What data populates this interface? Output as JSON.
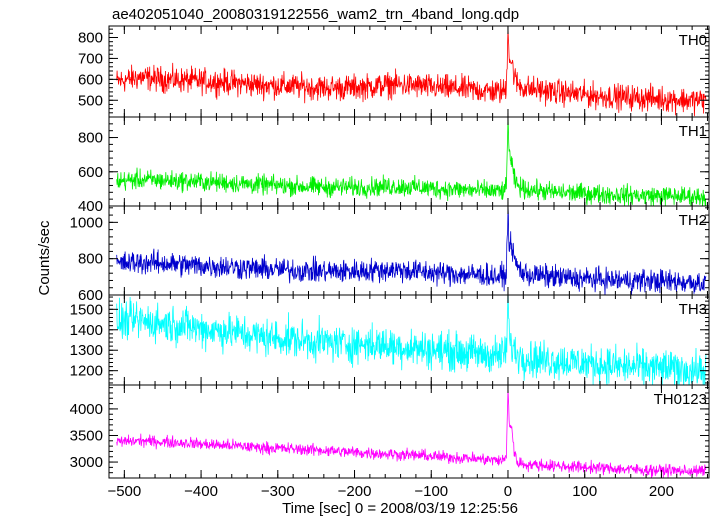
{
  "chart_data": {
    "type": "line",
    "title": "ae402051040_20080319122556_wam2_trn_4band_long.qdp",
    "xlabel": "Time [sec] 0 = 2008/03/19 12:25:56",
    "ylabel": "Counts/sec",
    "xlim": [
      -520,
      262
    ],
    "x_ticks": [
      "−500",
      "−400",
      "−300",
      "−200",
      "−100",
      "0",
      "100",
      "200"
    ],
    "x_tick_values": [
      -500,
      -400,
      -300,
      -200,
      -100,
      0,
      100,
      200
    ],
    "panels": [
      {
        "name": "TH0",
        "color": "#ff0000",
        "ylim": [
          420,
          855
        ],
        "y_ticks": [
          "500",
          "600",
          "700",
          "800"
        ],
        "y_tick_values": [
          500,
          600,
          700,
          800
        ],
        "x": [
          -510,
          -480,
          -450,
          -420,
          -390,
          -360,
          -330,
          -300,
          -270,
          -240,
          -210,
          -180,
          -150,
          -120,
          -90,
          -60,
          -30,
          -10,
          -5,
          -2,
          0,
          2,
          5,
          8,
          12,
          20,
          30,
          60,
          90,
          120,
          150,
          180,
          210,
          240,
          258
        ],
        "y": [
          590,
          610,
          600,
          595,
          590,
          585,
          575,
          570,
          565,
          560,
          560,
          565,
          575,
          570,
          560,
          555,
          545,
          540,
          545,
          560,
          860,
          700,
          680,
          620,
          580,
          560,
          555,
          540,
          530,
          520,
          515,
          510,
          505,
          500,
          500
        ],
        "noise": 30
      },
      {
        "name": "TH1",
        "color": "#00ee00",
        "ylim": [
          400,
          920
        ],
        "y_ticks": [
          "400",
          "600",
          "800"
        ],
        "y_tick_values": [
          400,
          600,
          800
        ],
        "x": [
          -510,
          -480,
          -450,
          -420,
          -390,
          -360,
          -330,
          -300,
          -270,
          -240,
          -210,
          -180,
          -150,
          -120,
          -90,
          -60,
          -30,
          -10,
          -5,
          -2,
          0,
          2,
          5,
          8,
          12,
          20,
          30,
          60,
          90,
          120,
          150,
          180,
          210,
          240,
          258
        ],
        "y": [
          545,
          555,
          550,
          545,
          540,
          535,
          525,
          520,
          515,
          510,
          510,
          510,
          515,
          510,
          500,
          495,
          490,
          485,
          490,
          500,
          920,
          700,
          640,
          560,
          520,
          500,
          495,
          480,
          475,
          470,
          465,
          460,
          460,
          455,
          455
        ],
        "noise": 28
      },
      {
        "name": "TH2",
        "color": "#0000cd",
        "ylim": [
          600,
          1090
        ],
        "y_ticks": [
          "600",
          "800",
          "1000"
        ],
        "y_tick_values": [
          600,
          800,
          1000
        ],
        "x": [
          -510,
          -480,
          -450,
          -420,
          -390,
          -360,
          -330,
          -300,
          -270,
          -240,
          -210,
          -180,
          -150,
          -120,
          -90,
          -60,
          -30,
          -10,
          -5,
          -2,
          0,
          2,
          5,
          8,
          12,
          20,
          30,
          60,
          90,
          120,
          150,
          180,
          210,
          240,
          258
        ],
        "y": [
          770,
          780,
          775,
          765,
          760,
          755,
          745,
          740,
          735,
          730,
          730,
          735,
          740,
          730,
          720,
          715,
          710,
          700,
          705,
          720,
          1080,
          850,
          880,
          800,
          760,
          720,
          710,
          700,
          690,
          685,
          680,
          680,
          675,
          670,
          670
        ],
        "noise": 32
      },
      {
        "name": "TH3",
        "color": "#00ffff",
        "ylim": [
          1130,
          1570
        ],
        "y_ticks": [
          "1200",
          "1300",
          "1400",
          "1500"
        ],
        "y_tick_values": [
          1200,
          1300,
          1400,
          1500
        ],
        "x": [
          -510,
          -480,
          -450,
          -420,
          -390,
          -360,
          -330,
          -300,
          -270,
          -240,
          -210,
          -180,
          -150,
          -120,
          -90,
          -60,
          -30,
          -10,
          -5,
          -2,
          0,
          2,
          5,
          8,
          12,
          20,
          30,
          60,
          90,
          120,
          150,
          180,
          210,
          240,
          258
        ],
        "y": [
          1440,
          1445,
          1430,
          1420,
          1400,
          1390,
          1370,
          1360,
          1350,
          1340,
          1330,
          1330,
          1320,
          1310,
          1300,
          1290,
          1280,
          1275,
          1280,
          1300,
          1550,
          1350,
          1320,
          1300,
          1280,
          1270,
          1260,
          1250,
          1240,
          1230,
          1220,
          1215,
          1210,
          1200,
          1200
        ],
        "noise": 45
      },
      {
        "name": "TH0123",
        "color": "#ff00ff",
        "ylim": [
          2700,
          4450
        ],
        "y_ticks": [
          "3000",
          "3500",
          "4000"
        ],
        "y_tick_values": [
          3000,
          3500,
          4000
        ],
        "x": [
          -510,
          -480,
          -450,
          -420,
          -390,
          -360,
          -330,
          -300,
          -270,
          -240,
          -210,
          -180,
          -150,
          -120,
          -90,
          -60,
          -30,
          -10,
          -5,
          -2,
          0,
          2,
          5,
          8,
          12,
          20,
          30,
          60,
          90,
          120,
          150,
          180,
          210,
          240,
          258
        ],
        "y": [
          3380,
          3400,
          3380,
          3360,
          3330,
          3310,
          3280,
          3260,
          3240,
          3220,
          3190,
          3170,
          3150,
          3130,
          3100,
          3080,
          3050,
          3030,
          3040,
          3100,
          4400,
          3700,
          3650,
          3200,
          3000,
          2960,
          2950,
          2930,
          2910,
          2890,
          2870,
          2850,
          2840,
          2830,
          2830
        ],
        "noise": 55
      }
    ]
  }
}
